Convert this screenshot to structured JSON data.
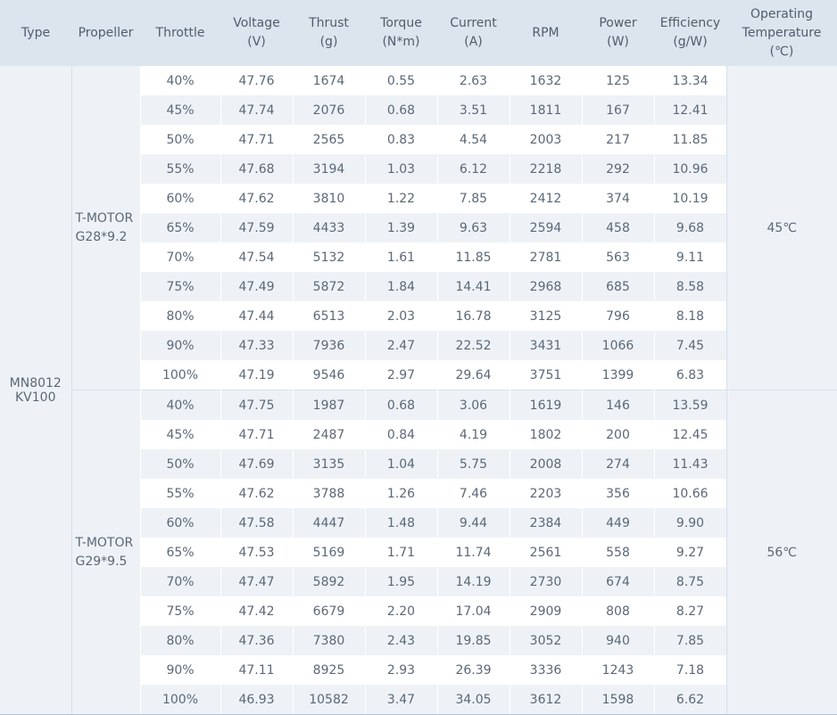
{
  "headers": [
    [
      "Type"
    ],
    [
      "Propeller"
    ],
    [
      "Throttle"
    ],
    [
      "Voltage",
      "(V)"
    ],
    [
      "Thrust",
      "(g)"
    ],
    [
      "Torque",
      "(N*m)"
    ],
    [
      "Current",
      "(A)"
    ],
    [
      "RPM"
    ],
    [
      "Power",
      "(W)"
    ],
    [
      "Efficiency",
      "(g/W)"
    ],
    [
      "Operating",
      "Temperature",
      "(℃)"
    ]
  ],
  "motor_type": [
    "MN8012",
    "KV100"
  ],
  "groups": [
    {
      "propeller": [
        "T-MOTOR",
        "G28*9.2"
      ],
      "temperature": "45℃",
      "rows": [
        [
          "40%",
          "47.76",
          "1674",
          "0.55",
          "2.63",
          "1632",
          "125",
          "13.34"
        ],
        [
          "45%",
          "47.74",
          "2076",
          "0.68",
          "3.51",
          "1811",
          "167",
          "12.41"
        ],
        [
          "50%",
          "47.71",
          "2565",
          "0.83",
          "4.54",
          "2003",
          "217",
          "11.85"
        ],
        [
          "55%",
          "47.68",
          "3194",
          "1.03",
          "6.12",
          "2218",
          "292",
          "10.96"
        ],
        [
          "60%",
          "47.62",
          "3810",
          "1.22",
          "7.85",
          "2412",
          "374",
          "10.19"
        ],
        [
          "65%",
          "47.59",
          "4433",
          "1.39",
          "9.63",
          "2594",
          "458",
          "9.68"
        ],
        [
          "70%",
          "47.54",
          "5132",
          "1.61",
          "11.85",
          "2781",
          "563",
          "9.11"
        ],
        [
          "75%",
          "47.49",
          "5872",
          "1.84",
          "14.41",
          "2968",
          "685",
          "8.58"
        ],
        [
          "80%",
          "47.44",
          "6513",
          "2.03",
          "16.78",
          "3125",
          "796",
          "8.18"
        ],
        [
          "90%",
          "47.33",
          "7936",
          "2.47",
          "22.52",
          "3431",
          "1066",
          "7.45"
        ],
        [
          "100%",
          "47.19",
          "9546",
          "2.97",
          "29.64",
          "3751",
          "1399",
          "6.83"
        ]
      ]
    },
    {
      "propeller": [
        "T-MOTOR",
        "G29*9.5"
      ],
      "temperature": "56℃",
      "rows": [
        [
          "40%",
          "47.75",
          "1987",
          "0.68",
          "3.06",
          "1619",
          "146",
          "13.59"
        ],
        [
          "45%",
          "47.71",
          "2487",
          "0.84",
          "4.19",
          "1802",
          "200",
          "12.45"
        ],
        [
          "50%",
          "47.69",
          "3135",
          "1.04",
          "5.75",
          "2008",
          "274",
          "11.43"
        ],
        [
          "55%",
          "47.62",
          "3788",
          "1.26",
          "7.46",
          "2203",
          "356",
          "10.66"
        ],
        [
          "60%",
          "47.58",
          "4447",
          "1.48",
          "9.44",
          "2384",
          "449",
          "9.90"
        ],
        [
          "65%",
          "47.53",
          "5169",
          "1.71",
          "11.74",
          "2561",
          "558",
          "9.27"
        ],
        [
          "70%",
          "47.47",
          "5892",
          "1.95",
          "14.19",
          "2730",
          "674",
          "8.75"
        ],
        [
          "75%",
          "47.42",
          "6679",
          "2.20",
          "17.04",
          "2909",
          "808",
          "8.27"
        ],
        [
          "80%",
          "47.36",
          "7380",
          "2.43",
          "19.85",
          "3052",
          "940",
          "7.85"
        ],
        [
          "90%",
          "47.11",
          "8925",
          "2.93",
          "26.39",
          "3336",
          "1243",
          "7.18"
        ],
        [
          "100%",
          "46.93",
          "10582",
          "3.47",
          "34.05",
          "3612",
          "1598",
          "6.62"
        ]
      ]
    }
  ]
}
